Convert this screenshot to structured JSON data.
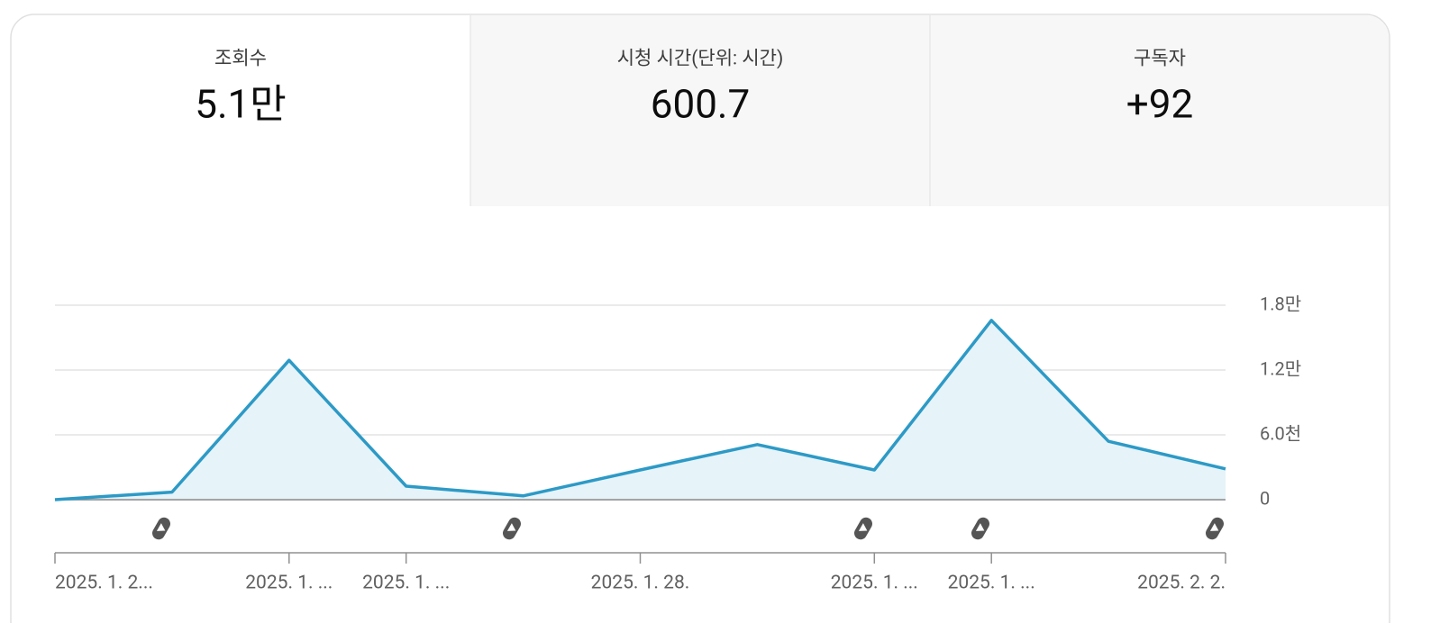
{
  "tabs": [
    {
      "label": "조회수",
      "value": "5.1만"
    },
    {
      "label": "시청 시간(단위: 시간)",
      "value": "600.7"
    },
    {
      "label": "구독자",
      "value": "+92"
    }
  ],
  "chart_data": {
    "type": "line",
    "color": "#2d9ac6",
    "fill": "#e6f3f9",
    "categories": [
      "2025. 1. 2...",
      null,
      "2025. 1. ...",
      "2025. 1. ...",
      null,
      "2025. 1. 28.",
      null,
      "2025. 1. ...",
      "2025. 1. ...",
      null,
      "2025. 2. 2."
    ],
    "values": [
      0,
      700,
      12900,
      1250,
      350,
      2750,
      5100,
      2750,
      16600,
      5400,
      2850
    ],
    "ylim": [
      0,
      18000
    ],
    "yticks": [
      0,
      {
        "value": 6000,
        "label": "6.0천"
      },
      {
        "value": 12000,
        "label": "1.2만"
      },
      {
        "value": 18000,
        "label": "1.8만"
      }
    ],
    "grid": true
  }
}
